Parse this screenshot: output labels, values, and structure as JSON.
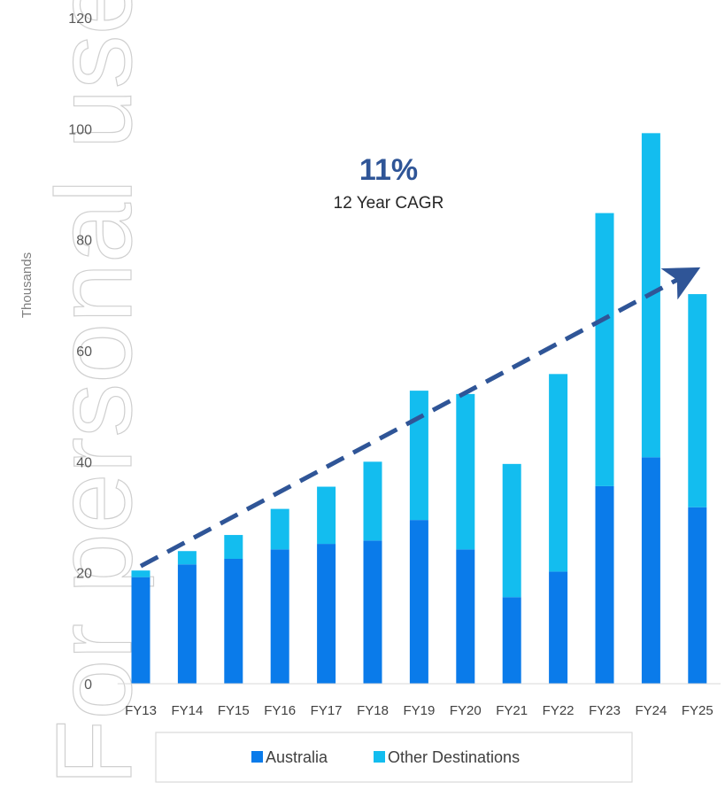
{
  "watermark": "For personal use only",
  "chart_data": {
    "type": "bar",
    "stacked": true,
    "categories": [
      "FY13",
      "FY14",
      "FY15",
      "FY16",
      "FY17",
      "FY18",
      "FY19",
      "FY20",
      "FY21",
      "FY22",
      "FY23",
      "FY24",
      "FY25"
    ],
    "series": [
      {
        "name": "Australia",
        "color": "#0a7bea",
        "values": [
          19.2,
          21.5,
          22.5,
          24.2,
          25.2,
          25.8,
          29.5,
          24.2,
          15.6,
          20.2,
          35.6,
          40.8,
          31.8
        ]
      },
      {
        "name": "Other Destinations",
        "color": "#13bdef",
        "values": [
          1.2,
          2.4,
          4.3,
          7.3,
          10.3,
          14.2,
          23.3,
          28.0,
          24.0,
          35.6,
          49.2,
          58.4,
          38.4
        ]
      }
    ],
    "ylabel": "Thousands",
    "ylim": [
      0,
      120
    ],
    "yticks": [
      0,
      20,
      40,
      60,
      80,
      100,
      120
    ],
    "grid": false,
    "legend_position": "bottom",
    "trend": {
      "style": "dashed-arrow",
      "color": "#2f5597",
      "from": {
        "category": "FY13",
        "value": 21.2
      },
      "to": {
        "category": "FY25",
        "value": 74.5
      }
    },
    "annotation": {
      "value": "11%",
      "label": "12 Year CAGR",
      "value_color": "#2f5597"
    }
  }
}
